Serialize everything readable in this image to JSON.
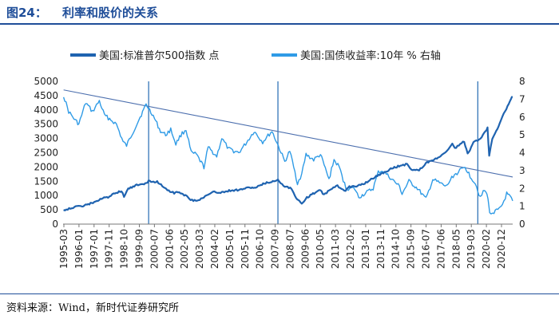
{
  "figure": {
    "number": "图24：",
    "title": "利率和股价的关系",
    "source": "资料来源：Wind，新时代证券研究所"
  },
  "colors": {
    "sp500": "#1f63b0",
    "yield": "#2f9be6",
    "trend": "#4c6fae",
    "marker": "#3476b8",
    "header": "#1f4e99"
  },
  "chart_data": {
    "type": "line",
    "title": "利率和股价的关系",
    "legend_position": "top",
    "x": {
      "tick_labels": [
        "1995-03",
        "1996-01",
        "1997-01",
        "1997-11",
        "1998-10",
        "1999-09",
        "2000-07",
        "2001-06",
        "2002-05",
        "2003-03",
        "2004-02",
        "2005-01",
        "2005-11",
        "2006-10",
        "2007-09",
        "2008-07",
        "2009-06",
        "2010-05",
        "2011-03",
        "2012-02",
        "2013-01",
        "2013-11",
        "2014-10",
        "2015-09",
        "2016-07",
        "2017-06",
        "2018-05",
        "2019-03",
        "2020-02",
        "2020-12"
      ],
      "range_years": [
        1995.17,
        2021.6
      ]
    },
    "y_left": {
      "range": [
        0,
        5000
      ],
      "ticks": [
        0,
        500,
        1000,
        1500,
        2000,
        2500,
        3000,
        3500,
        4000,
        4500,
        5000
      ],
      "series": "美国:标准普尔500指数 点"
    },
    "y_right": {
      "range": [
        0,
        8
      ],
      "ticks": [
        0,
        1,
        2,
        3,
        4,
        5,
        6,
        7,
        8
      ],
      "series": "美国:国债收益率:10年 % 右轴"
    },
    "series": [
      {
        "name": "美国:标准普尔500指数 点",
        "axis": "left",
        "points": [
          [
            1995.2,
            490
          ],
          [
            1995.6,
            560
          ],
          [
            1996.0,
            610
          ],
          [
            1996.5,
            660
          ],
          [
            1997.0,
            770
          ],
          [
            1997.5,
            900
          ],
          [
            1997.9,
            960
          ],
          [
            1998.3,
            1110
          ],
          [
            1998.6,
            1140
          ],
          [
            1998.75,
            980
          ],
          [
            1999.0,
            1230
          ],
          [
            1999.5,
            1360
          ],
          [
            2000.0,
            1430
          ],
          [
            2000.2,
            1500
          ],
          [
            2000.7,
            1480
          ],
          [
            2001.0,
            1350
          ],
          [
            2001.3,
            1200
          ],
          [
            2001.7,
            1090
          ],
          [
            2002.0,
            1130
          ],
          [
            2002.5,
            950
          ],
          [
            2002.75,
            830
          ],
          [
            2003.2,
            860
          ],
          [
            2003.6,
            1000
          ],
          [
            2004.0,
            1120
          ],
          [
            2004.5,
            1110
          ],
          [
            2005.0,
            1180
          ],
          [
            2005.5,
            1200
          ],
          [
            2006.0,
            1270
          ],
          [
            2006.5,
            1280
          ],
          [
            2007.0,
            1420
          ],
          [
            2007.5,
            1500
          ],
          [
            2007.8,
            1540
          ],
          [
            2008.2,
            1330
          ],
          [
            2008.6,
            1250
          ],
          [
            2008.8,
            970
          ],
          [
            2009.0,
            850
          ],
          [
            2009.2,
            720
          ],
          [
            2009.5,
            930
          ],
          [
            2010.0,
            1110
          ],
          [
            2010.3,
            1180
          ],
          [
            2010.5,
            1040
          ],
          [
            2010.9,
            1200
          ],
          [
            2011.3,
            1350
          ],
          [
            2011.7,
            1150
          ],
          [
            2012.0,
            1300
          ],
          [
            2012.5,
            1350
          ],
          [
            2012.9,
            1420
          ],
          [
            2013.5,
            1650
          ],
          [
            2014.0,
            1800
          ],
          [
            2014.5,
            1950
          ],
          [
            2015.0,
            2050
          ],
          [
            2015.4,
            2100
          ],
          [
            2015.65,
            1920
          ],
          [
            2016.1,
            1880
          ],
          [
            2016.5,
            2130
          ],
          [
            2017.0,
            2270
          ],
          [
            2017.5,
            2430
          ],
          [
            2018.05,
            2800
          ],
          [
            2018.2,
            2650
          ],
          [
            2018.75,
            2900
          ],
          [
            2018.95,
            2450
          ],
          [
            2019.3,
            2850
          ],
          [
            2019.7,
            3000
          ],
          [
            2020.0,
            3250
          ],
          [
            2020.12,
            3380
          ],
          [
            2020.22,
            2400
          ],
          [
            2020.4,
            3000
          ],
          [
            2020.7,
            3350
          ],
          [
            2021.0,
            3750
          ],
          [
            2021.3,
            4150
          ],
          [
            2021.5,
            4400
          ],
          [
            2021.6,
            4450
          ]
        ]
      },
      {
        "name": "美国:国债收益率:10年 % 右轴",
        "axis": "right",
        "points": [
          [
            1995.2,
            7.2
          ],
          [
            1995.5,
            6.3
          ],
          [
            1995.9,
            5.8
          ],
          [
            1996.1,
            5.6
          ],
          [
            1996.5,
            6.8
          ],
          [
            1996.9,
            6.3
          ],
          [
            1997.3,
            6.9
          ],
          [
            1997.6,
            6.1
          ],
          [
            1997.9,
            5.9
          ],
          [
            1998.3,
            5.6
          ],
          [
            1998.7,
            4.6
          ],
          [
            1998.9,
            4.4
          ],
          [
            1999.3,
            5.2
          ],
          [
            1999.7,
            6.0
          ],
          [
            2000.05,
            6.7
          ],
          [
            2000.4,
            6.2
          ],
          [
            2000.9,
            5.2
          ],
          [
            2001.2,
            5.0
          ],
          [
            2001.5,
            5.3
          ],
          [
            2001.8,
            4.5
          ],
          [
            2002.1,
            5.0
          ],
          [
            2002.4,
            5.3
          ],
          [
            2002.7,
            4.0
          ],
          [
            2003.0,
            3.9
          ],
          [
            2003.45,
            3.2
          ],
          [
            2003.7,
            4.3
          ],
          [
            2004.2,
            3.8
          ],
          [
            2004.5,
            4.8
          ],
          [
            2004.9,
            4.2
          ],
          [
            2005.5,
            4.0
          ],
          [
            2005.9,
            4.5
          ],
          [
            2006.4,
            5.2
          ],
          [
            2006.9,
            4.6
          ],
          [
            2007.45,
            5.2
          ],
          [
            2007.9,
            4.2
          ],
          [
            2008.2,
            3.5
          ],
          [
            2008.5,
            4.1
          ],
          [
            2008.95,
            2.3
          ],
          [
            2009.2,
            2.8
          ],
          [
            2009.45,
            3.9
          ],
          [
            2009.9,
            3.6
          ],
          [
            2010.3,
            3.9
          ],
          [
            2010.8,
            2.5
          ],
          [
            2011.1,
            3.6
          ],
          [
            2011.4,
            3.2
          ],
          [
            2011.8,
            2.0
          ],
          [
            2012.3,
            2.0
          ],
          [
            2012.55,
            1.5
          ],
          [
            2012.9,
            1.7
          ],
          [
            2013.4,
            2.0
          ],
          [
            2013.7,
            2.9
          ],
          [
            2013.95,
            3.0
          ],
          [
            2014.4,
            2.6
          ],
          [
            2014.95,
            2.1
          ],
          [
            2015.1,
            1.7
          ],
          [
            2015.5,
            2.4
          ],
          [
            2016.0,
            2.0
          ],
          [
            2016.5,
            1.4
          ],
          [
            2016.9,
            2.5
          ],
          [
            2017.3,
            2.3
          ],
          [
            2017.7,
            2.1
          ],
          [
            2018.1,
            2.7
          ],
          [
            2018.8,
            3.2
          ],
          [
            2019.1,
            2.7
          ],
          [
            2019.4,
            2.3
          ],
          [
            2019.7,
            1.5
          ],
          [
            2019.95,
            1.9
          ],
          [
            2020.15,
            1.5
          ],
          [
            2020.25,
            0.55
          ],
          [
            2020.5,
            0.7
          ],
          [
            2020.8,
            0.8
          ],
          [
            2021.0,
            1.1
          ],
          [
            2021.25,
            1.7
          ],
          [
            2021.45,
            1.5
          ],
          [
            2021.6,
            1.3
          ]
        ]
      }
    ],
    "trend_line": {
      "axis": "left",
      "from": [
        1995.2,
        4700
      ],
      "to": [
        2021.6,
        1650
      ]
    },
    "vertical_markers": [
      2000.2,
      2007.8,
      2019.55
    ]
  }
}
